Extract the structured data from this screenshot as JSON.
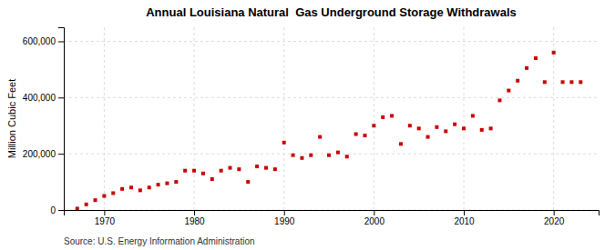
{
  "chart_data": {
    "type": "scatter",
    "title": "Annual Louisiana Natural  Gas Underground Storage Withdrawals",
    "ylabel": "Million Cubic Feet",
    "annotation": "Source: U.S. Energy Information Administration",
    "color": "#cc0000",
    "marker": "square",
    "grid": true,
    "xlim": [
      1965.5,
      2025
    ],
    "xticks": [
      1970,
      1980,
      1990,
      2000,
      2010,
      2020
    ],
    "ylim": [
      0,
      650000
    ],
    "yticks": [
      0,
      {
        "value": 200000,
        "label": "200,000"
      },
      {
        "value": 400000,
        "label": "400,000"
      },
      {
        "value": 600000,
        "label": "600,000"
      }
    ],
    "x": [
      1967,
      1968,
      1969,
      1970,
      1971,
      1972,
      1973,
      1974,
      1975,
      1976,
      1977,
      1978,
      1979,
      1980,
      1981,
      1982,
      1983,
      1984,
      1985,
      1986,
      1987,
      1988,
      1989,
      1990,
      1991,
      1992,
      1993,
      1994,
      1995,
      1996,
      1997,
      1998,
      1999,
      2000,
      2001,
      2002,
      2003,
      2004,
      2005,
      2006,
      2007,
      2008,
      2009,
      2010,
      2011,
      2012,
      2013,
      2014,
      2015,
      2016,
      2017,
      2018,
      2019,
      2020,
      2021,
      2022,
      2023
    ],
    "values": [
      5000,
      20000,
      35000,
      50000,
      60000,
      75000,
      80000,
      70000,
      80000,
      90000,
      95000,
      100000,
      140000,
      140000,
      130000,
      110000,
      140000,
      150000,
      145000,
      100000,
      155000,
      150000,
      145000,
      240000,
      195000,
      185000,
      195000,
      260000,
      195000,
      205000,
      190000,
      270000,
      265000,
      300000,
      330000,
      335000,
      235000,
      300000,
      290000,
      260000,
      295000,
      280000,
      305000,
      290000,
      335000,
      285000,
      290000,
      390000,
      425000,
      460000,
      505000,
      540000,
      455000,
      560000,
      455000,
      455000,
      455000
    ]
  }
}
